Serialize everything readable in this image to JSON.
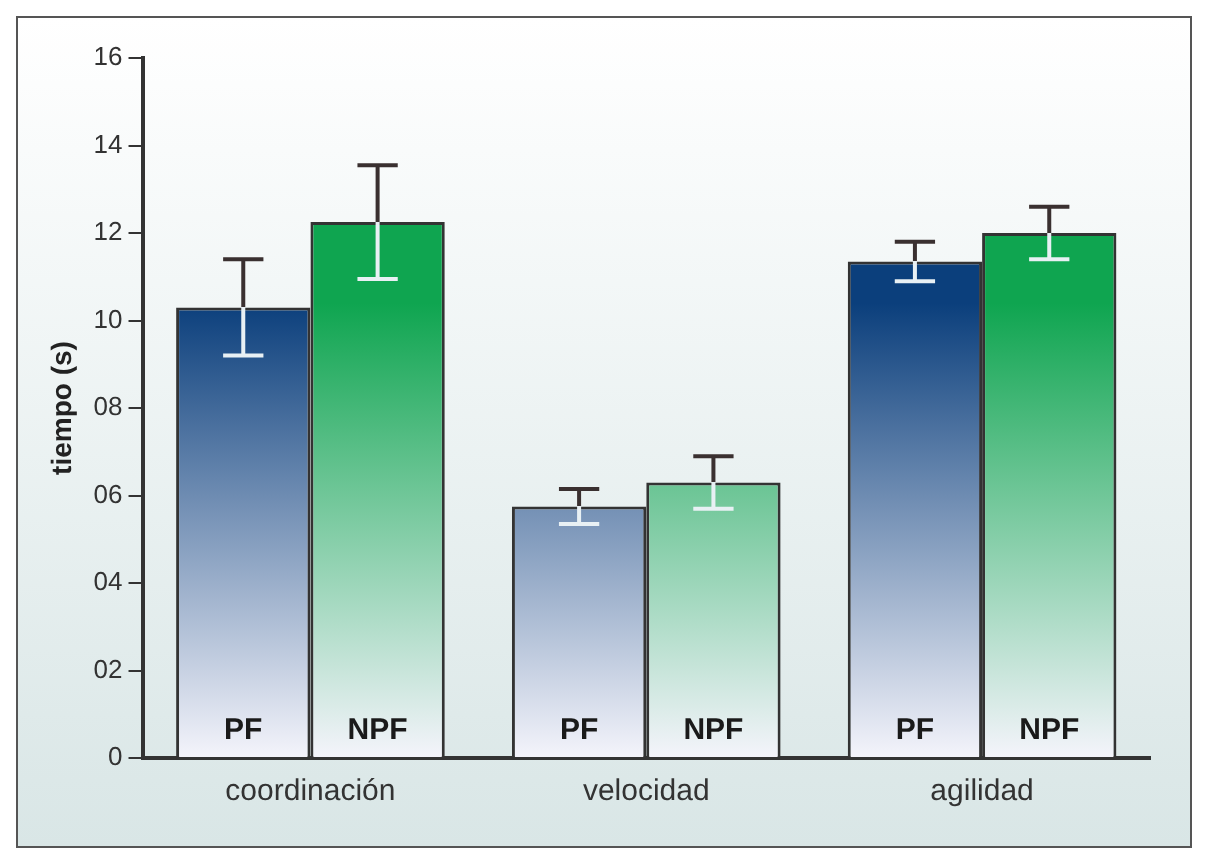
{
  "chart_data": {
    "type": "bar",
    "ylabel": "tiempo (s)",
    "categories": [
      "coordinación",
      "velocidad",
      "agilidad"
    ],
    "series": [
      {
        "name": "PF",
        "color": "#0b3f7c",
        "values": [
          10.3,
          5.75,
          11.35
        ],
        "errors": [
          1.1,
          0.4,
          0.45
        ]
      },
      {
        "name": "NPF",
        "color": "#0fa550",
        "values": [
          12.25,
          6.3,
          12.0
        ],
        "errors": [
          1.3,
          0.6,
          0.6
        ]
      }
    ],
    "ylim": [
      0,
      16
    ],
    "yticks": [
      0,
      {
        "value": 2,
        "label": "02"
      },
      {
        "value": 4,
        "label": "04"
      },
      {
        "value": 6,
        "label": "06"
      },
      {
        "value": 8,
        "label": "08"
      },
      10,
      12,
      14,
      16
    ],
    "grid": false,
    "legend": false
  }
}
